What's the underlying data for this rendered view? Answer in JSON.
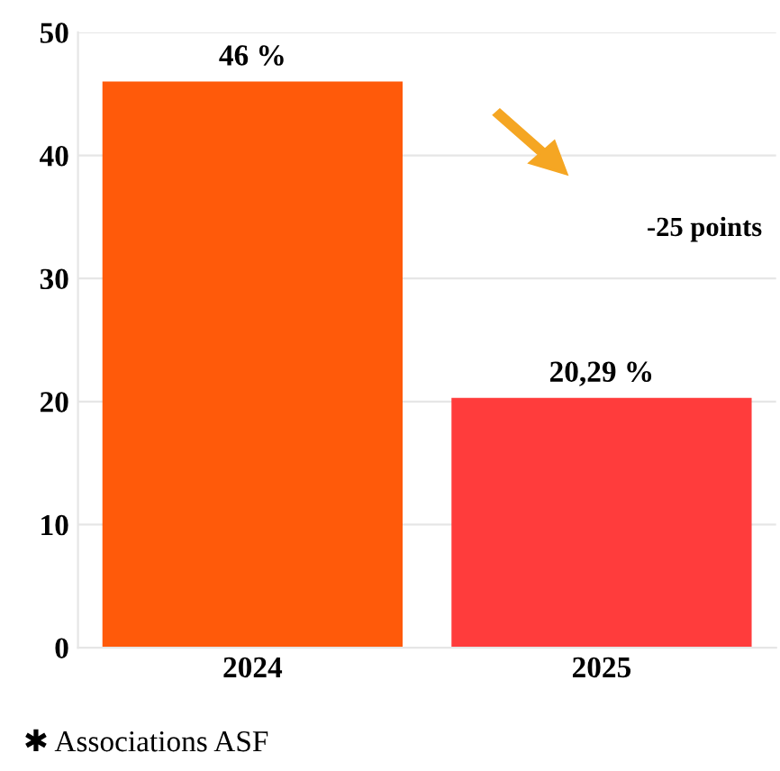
{
  "chart_data": {
    "type": "bar",
    "categories": [
      "2024",
      "2025"
    ],
    "values": [
      46,
      20.29
    ],
    "colors": [
      "#ff5a0a",
      "#ff3c3c"
    ],
    "value_labels": [
      "46 %",
      "20,29 %"
    ],
    "ylim": [
      0,
      50
    ],
    "yticks": [
      0,
      10,
      20,
      30,
      40,
      50
    ],
    "grid": "y",
    "annotations": [
      "-25 points",
      "✱ Associations ASF"
    ]
  }
}
